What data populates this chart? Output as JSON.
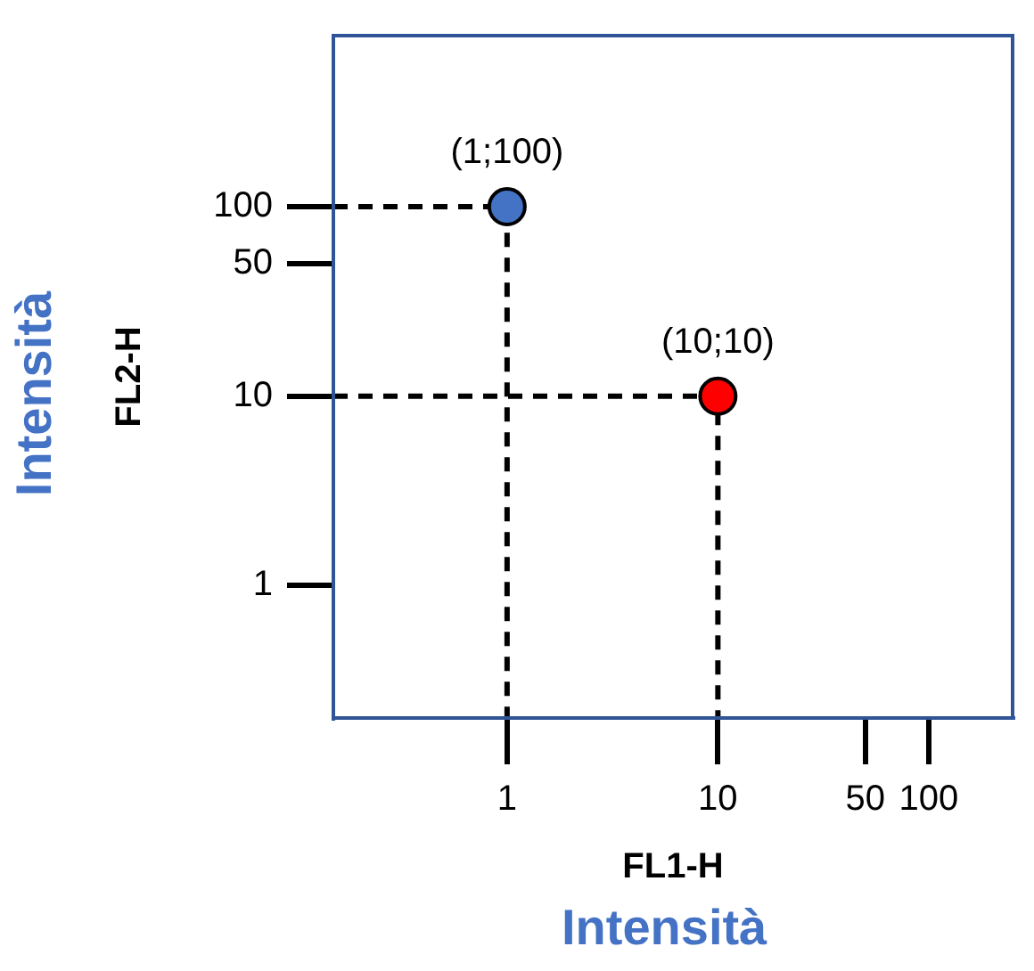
{
  "chart_data": {
    "type": "scatter",
    "xlabel": "FL1-H",
    "ylabel": "FL2-H",
    "annotations": [
      {
        "text": "(1;100)",
        "x": 1,
        "y": 100
      },
      {
        "text": "(10;10)",
        "x": 10,
        "y": 10
      },
      "Intensità",
      "Intensità"
    ],
    "series": [
      {
        "type": "line",
        "color": "#000000",
        "line_style": "dashed",
        "marker": "none",
        "x": [
          0.15,
          1,
          1
        ],
        "values": [
          100,
          100,
          0.2
        ]
      },
      {
        "type": "line",
        "color": "#000000",
        "line_style": "dashed",
        "marker": "none",
        "x": [
          0.15,
          10,
          10
        ],
        "values": [
          10,
          10,
          0.2
        ]
      },
      {
        "color": "#4472c4",
        "marker": "circle",
        "x": [
          1
        ],
        "values": [
          100
        ]
      },
      {
        "color": "#ff0000",
        "marker": "circle",
        "x": [
          10
        ],
        "values": [
          10
        ]
      }
    ],
    "log": "xy",
    "xlim": [
      0.15,
      250
    ],
    "ylim": [
      0.2,
      800
    ],
    "xticks": [
      1,
      10,
      50,
      100
    ],
    "yticks": [
      1,
      10,
      50,
      100
    ],
    "grid": false,
    "legend": false
  }
}
